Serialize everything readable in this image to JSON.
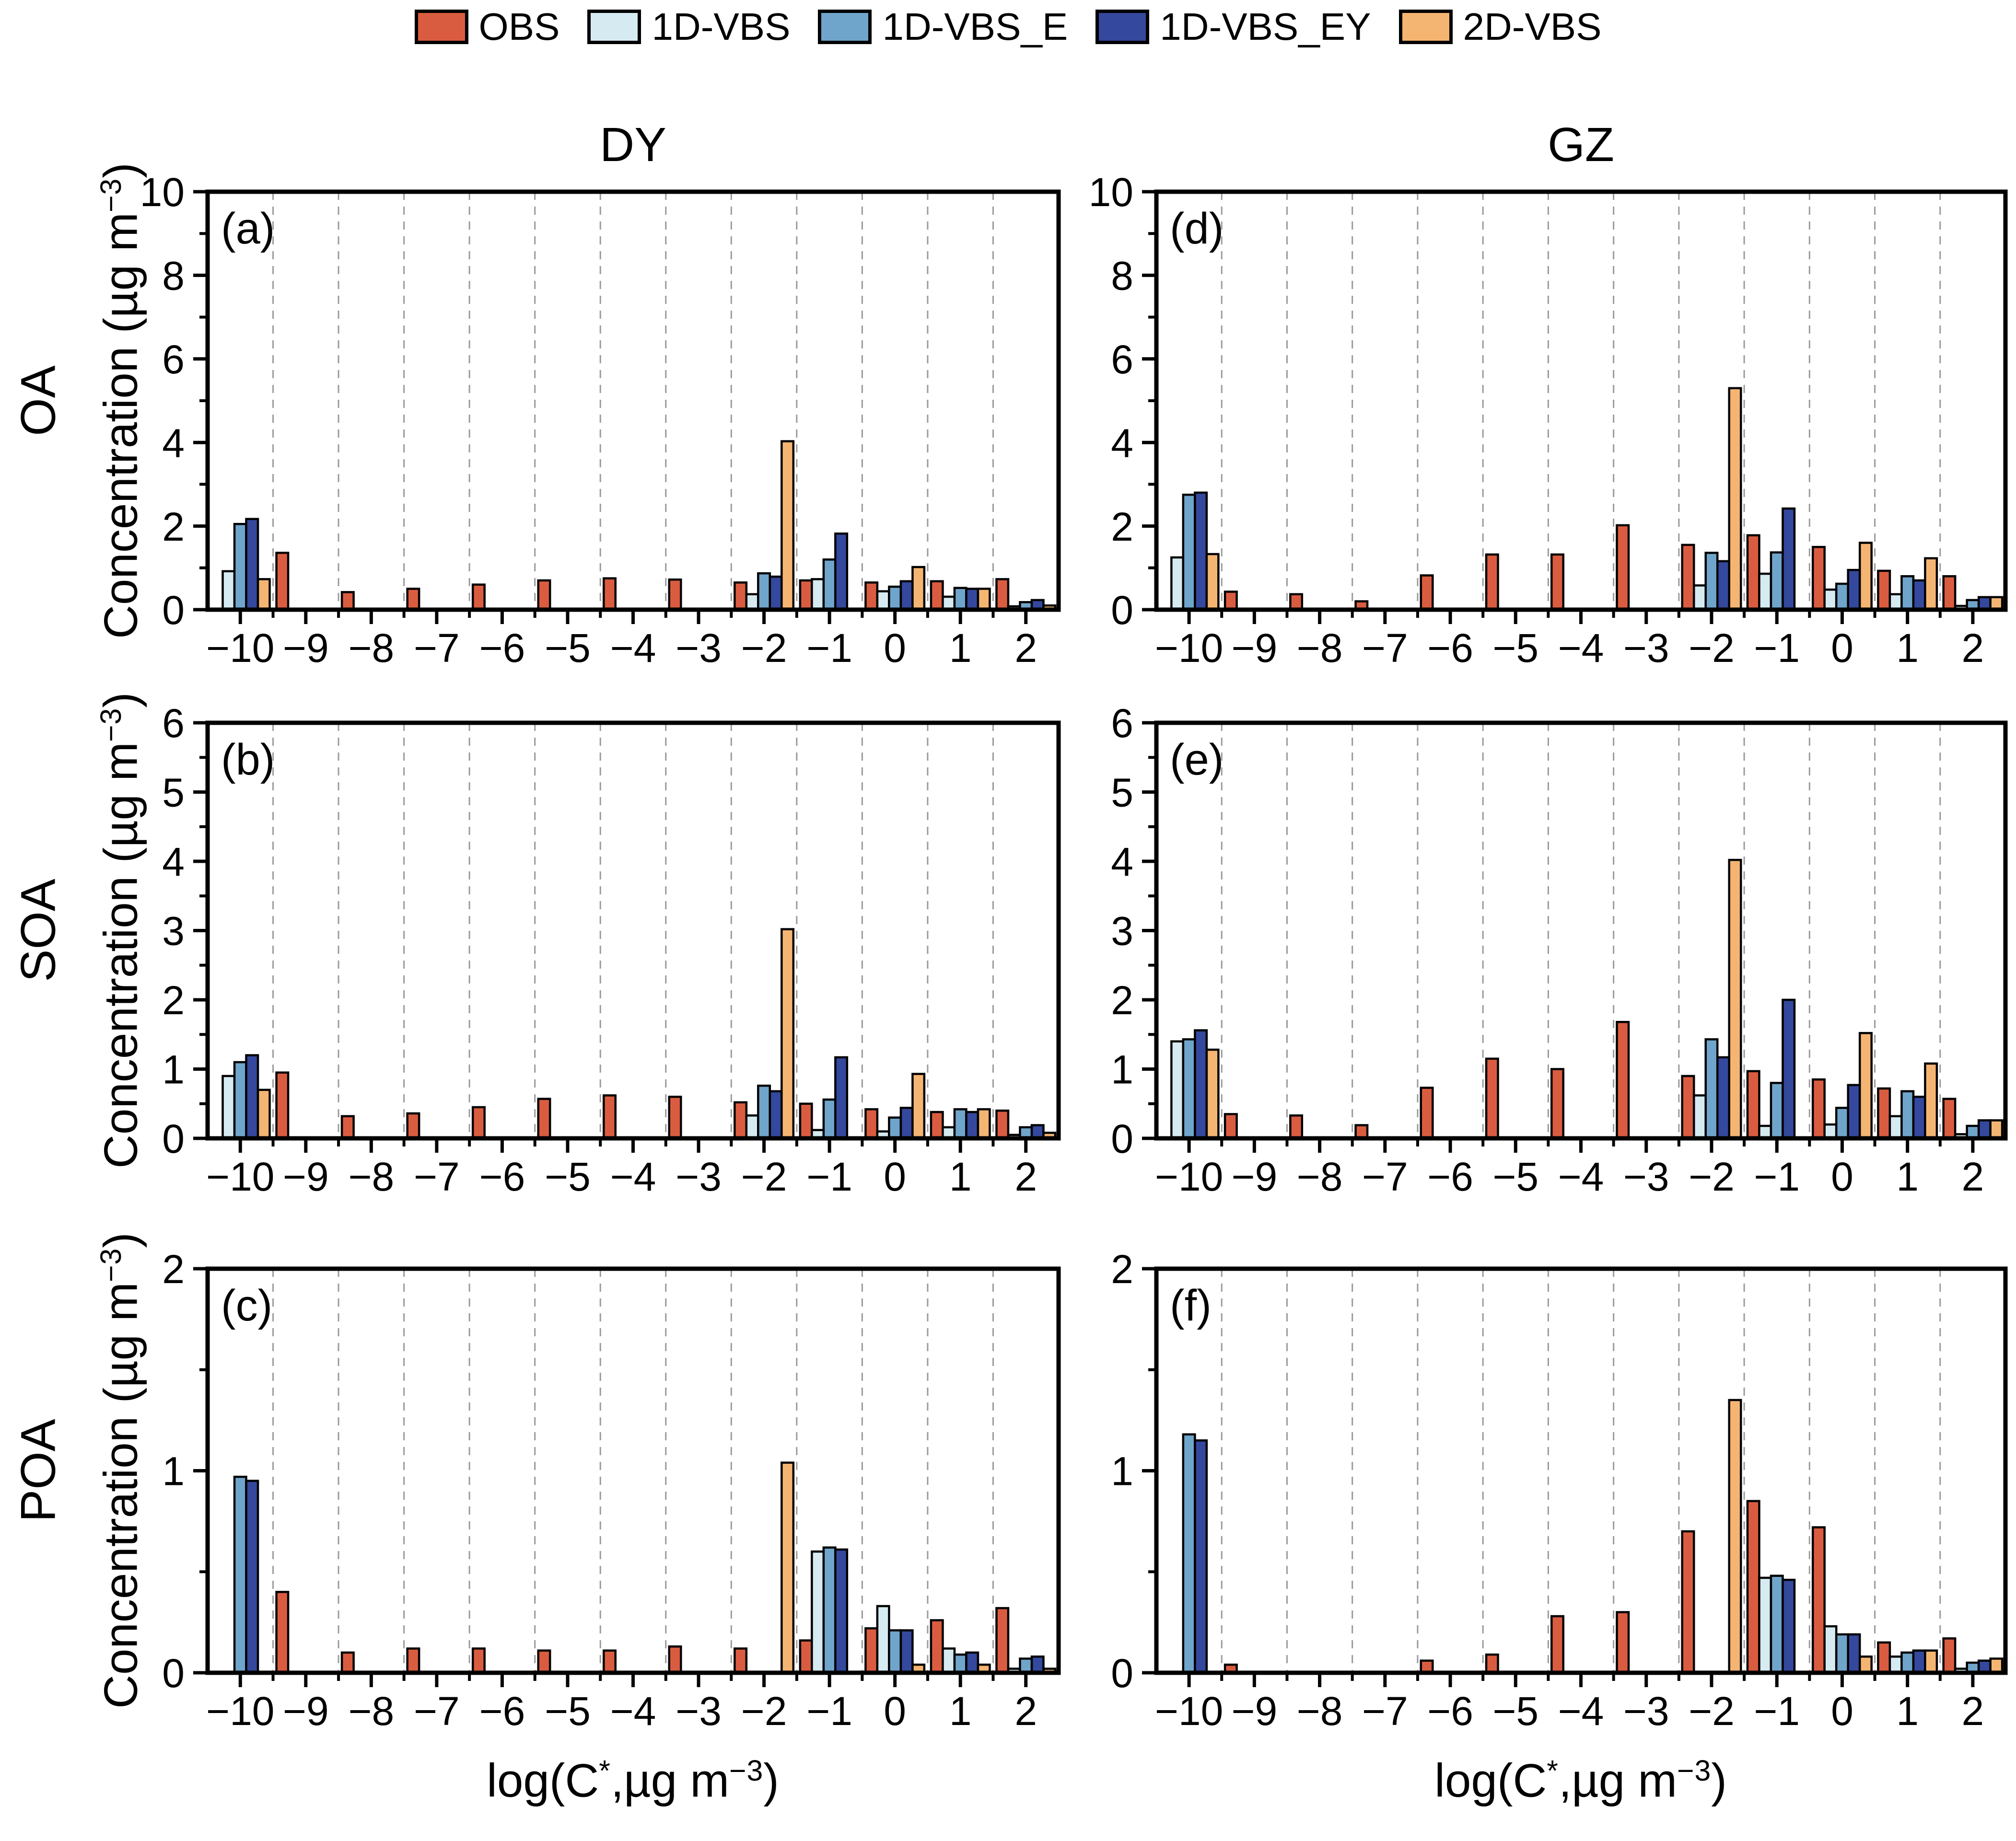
{
  "legend": {
    "items": [
      {
        "label": "OBS",
        "color": "#da5c40"
      },
      {
        "label": "1D-VBS",
        "color": "#d6ebf1"
      },
      {
        "label": "1D-VBS_E",
        "color": "#70a5cb"
      },
      {
        "label": "1D-VBS_EY",
        "color": "#34489d"
      },
      {
        "label": "2D-VBS",
        "color": "#f5b572"
      }
    ]
  },
  "columns": [
    "DY",
    "GZ"
  ],
  "rows": [
    "OA",
    "SOA",
    "POA"
  ],
  "axes": {
    "ylabel_main": "Concentration (µg m",
    "ylabel_sup": "−3",
    "ylabel_close": ")",
    "xlabel_p1": "log(C",
    "xlabel_sup1": "*",
    "xlabel_p2": ",µg m",
    "xlabel_sup2": "−3",
    "xlabel_p3": ")"
  },
  "chart_data": {
    "type": "bar",
    "categories": [
      -10,
      -9,
      -8,
      -7,
      -6,
      -5,
      -4,
      -3,
      -2,
      -1,
      0,
      1,
      2
    ],
    "series_names": [
      "OBS",
      "1D-VBS",
      "1D-VBS_E",
      "1D-VBS_EY",
      "2D-VBS"
    ],
    "grid": "vertical-dashed-at-half-integers",
    "legend_position": "top-center",
    "panels": [
      {
        "letter": "(a)",
        "row_label": "OA",
        "col_label": "DY",
        "row_index": 0,
        "col_index": 0,
        "ylim": [
          0,
          10
        ],
        "yticks": [
          0,
          2,
          4,
          6,
          8,
          10
        ],
        "yminor": [
          1,
          3,
          5,
          7,
          9
        ],
        "values": [
          [
            0,
            1.36,
            0.42,
            0.5,
            0.6,
            0.7,
            0.75,
            0.72,
            0.65,
            0.7,
            0.65,
            0.68,
            0.73
          ],
          [
            0.92,
            0,
            0,
            0,
            0,
            0,
            0,
            0,
            0.37,
            0.73,
            0.44,
            0.31,
            0.08
          ],
          [
            2.05,
            0,
            0,
            0,
            0,
            0,
            0,
            0,
            0.87,
            1.2,
            0.55,
            0.52,
            0.18
          ],
          [
            2.17,
            0,
            0,
            0,
            0,
            0,
            0,
            0,
            0.79,
            1.82,
            0.68,
            0.5,
            0.23
          ],
          [
            0.73,
            0,
            0,
            0,
            0,
            0,
            0,
            0,
            4.03,
            0,
            1.02,
            0.5,
            0.1
          ]
        ]
      },
      {
        "letter": "(d)",
        "row_label": "OA",
        "col_label": "GZ",
        "row_index": 0,
        "col_index": 1,
        "ylim": [
          0,
          10
        ],
        "yticks": [
          0,
          2,
          4,
          6,
          8,
          10
        ],
        "yminor": [
          1,
          3,
          5,
          7,
          9
        ],
        "values": [
          [
            0,
            0.43,
            0.37,
            0.2,
            0.82,
            1.32,
            1.32,
            2.02,
            1.55,
            1.78,
            1.5,
            0.93,
            0.8
          ],
          [
            1.25,
            0,
            0,
            0,
            0,
            0,
            0,
            0,
            0.58,
            0.86,
            0.48,
            0.37,
            0.09
          ],
          [
            2.75,
            0,
            0,
            0,
            0,
            0,
            0,
            0,
            1.36,
            1.37,
            0.62,
            0.8,
            0.23
          ],
          [
            2.8,
            0,
            0,
            0,
            0,
            0,
            0,
            0,
            1.16,
            2.42,
            0.95,
            0.7,
            0.3
          ],
          [
            1.33,
            0,
            0,
            0,
            0,
            0,
            0,
            0,
            5.3,
            0,
            1.6,
            1.23,
            0.3
          ]
        ]
      },
      {
        "letter": "(b)",
        "row_label": "SOA",
        "col_label": "DY",
        "row_index": 1,
        "col_index": 0,
        "ylim": [
          0,
          6
        ],
        "yticks": [
          0,
          1,
          2,
          3,
          4,
          5,
          6
        ],
        "yminor": [
          0.5,
          1.5,
          2.5,
          3.5,
          4.5,
          5.5
        ],
        "values": [
          [
            0,
            0.95,
            0.32,
            0.36,
            0.45,
            0.57,
            0.62,
            0.6,
            0.52,
            0.5,
            0.42,
            0.38,
            0.4
          ],
          [
            0.9,
            0,
            0,
            0,
            0,
            0,
            0,
            0,
            0.33,
            0.12,
            0.1,
            0.16,
            0.05
          ],
          [
            1.1,
            0,
            0,
            0,
            0,
            0,
            0,
            0,
            0.76,
            0.56,
            0.3,
            0.42,
            0.16
          ],
          [
            1.2,
            0,
            0,
            0,
            0,
            0,
            0,
            0,
            0.68,
            1.17,
            0.44,
            0.38,
            0.19
          ],
          [
            0.7,
            0,
            0,
            0,
            0,
            0,
            0,
            0,
            3.02,
            0,
            0.93,
            0.42,
            0.08
          ]
        ]
      },
      {
        "letter": "(e)",
        "row_label": "SOA",
        "col_label": "GZ",
        "row_index": 1,
        "col_index": 1,
        "ylim": [
          0,
          6
        ],
        "yticks": [
          0,
          1,
          2,
          3,
          4,
          5,
          6
        ],
        "yminor": [
          0.5,
          1.5,
          2.5,
          3.5,
          4.5,
          5.5
        ],
        "values": [
          [
            0,
            0.35,
            0.33,
            0.19,
            0.73,
            1.15,
            1.0,
            1.68,
            0.9,
            0.97,
            0.85,
            0.72,
            0.57
          ],
          [
            1.4,
            0,
            0,
            0,
            0,
            0,
            0,
            0,
            0.62,
            0.18,
            0.2,
            0.32,
            0.06
          ],
          [
            1.43,
            0,
            0,
            0,
            0,
            0,
            0,
            0,
            1.43,
            0.8,
            0.44,
            0.68,
            0.18
          ],
          [
            1.56,
            0,
            0,
            0,
            0,
            0,
            0,
            0,
            1.17,
            2.0,
            0.77,
            0.6,
            0.26
          ],
          [
            1.28,
            0,
            0,
            0,
            0,
            0,
            0,
            0,
            4.02,
            0,
            1.52,
            1.08,
            0.26
          ]
        ]
      },
      {
        "letter": "(c)",
        "row_label": "POA",
        "col_label": "DY",
        "row_index": 2,
        "col_index": 0,
        "ylim": [
          0,
          2
        ],
        "yticks": [
          0,
          1,
          2
        ],
        "yminor": [
          0.5,
          1.5
        ],
        "values": [
          [
            0,
            0.4,
            0.1,
            0.12,
            0.12,
            0.11,
            0.11,
            0.13,
            0.12,
            0.16,
            0.22,
            0.26,
            0.32
          ],
          [
            0,
            0,
            0,
            0,
            0,
            0,
            0,
            0,
            0,
            0.6,
            0.33,
            0.12,
            0.02
          ],
          [
            0.97,
            0,
            0,
            0,
            0,
            0,
            0,
            0,
            0,
            0.62,
            0.21,
            0.09,
            0.07
          ],
          [
            0.95,
            0,
            0,
            0,
            0,
            0,
            0,
            0,
            0,
            0.61,
            0.21,
            0.1,
            0.08
          ],
          [
            0,
            0,
            0,
            0,
            0,
            0,
            0,
            0,
            1.04,
            0,
            0.04,
            0.04,
            0.02
          ]
        ]
      },
      {
        "letter": "(f)",
        "row_label": "POA",
        "col_label": "GZ",
        "row_index": 2,
        "col_index": 1,
        "ylim": [
          0,
          2
        ],
        "yticks": [
          0,
          1,
          2
        ],
        "yminor": [
          0.5,
          1.5
        ],
        "values": [
          [
            0,
            0.04,
            0,
            0,
            0.06,
            0.09,
            0.28,
            0.3,
            0.7,
            0.85,
            0.72,
            0.15,
            0.17
          ],
          [
            0,
            0,
            0,
            0,
            0,
            0,
            0,
            0,
            0,
            0.47,
            0.23,
            0.08,
            0.02
          ],
          [
            1.18,
            0,
            0,
            0,
            0,
            0,
            0,
            0,
            0,
            0.48,
            0.19,
            0.1,
            0.05
          ],
          [
            1.15,
            0,
            0,
            0,
            0,
            0,
            0,
            0,
            0,
            0.46,
            0.19,
            0.11,
            0.06
          ],
          [
            0,
            0,
            0,
            0,
            0,
            0,
            0,
            0,
            1.35,
            0,
            0.08,
            0.11,
            0.07
          ]
        ]
      }
    ]
  }
}
